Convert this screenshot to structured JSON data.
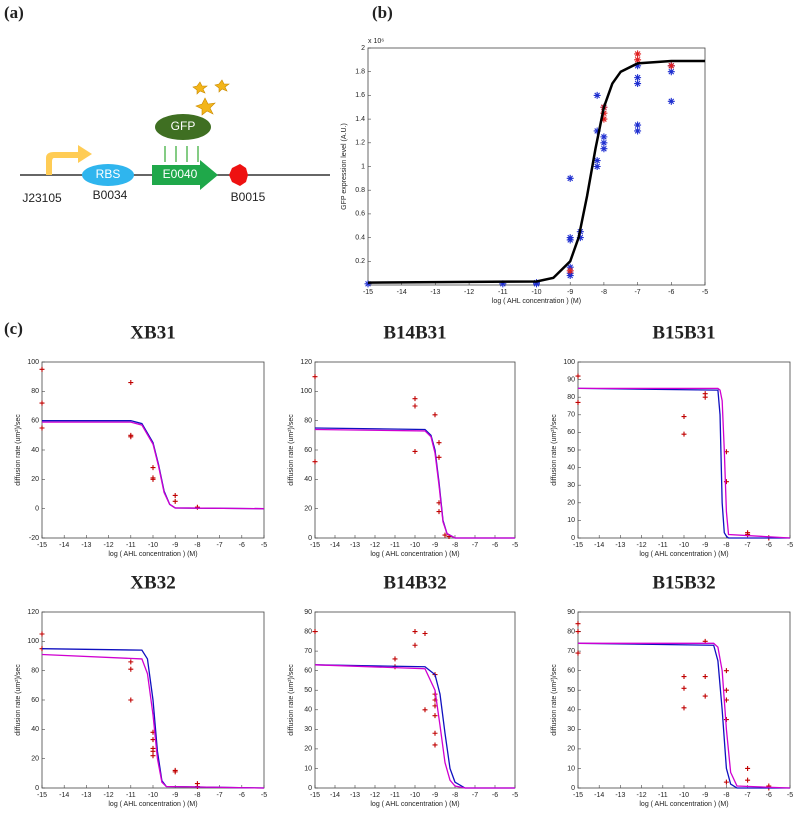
{
  "panel_labels": [
    "(a)",
    "(b)",
    "(c)"
  ],
  "diagram": {
    "promoter": "J23105",
    "rbs": "RBS",
    "rbs_part": "B0034",
    "protein": "GFP",
    "gene": "E0040",
    "terminator": "B0015"
  },
  "chart_data": [
    {
      "type": "scatter",
      "xlabel": "log ( AHL concentration ) (M)",
      "ylabel": "GFP expression level (A.U.)",
      "y_multiplier": "x 10⁶",
      "xlim": [
        -15,
        -5
      ],
      "xticks": [
        -15,
        -14,
        -13,
        -12,
        -11,
        -10,
        -9,
        -8,
        -7,
        -6,
        -5
      ],
      "ylim": [
        0,
        2
      ],
      "yticks": [
        0.2,
        0.4,
        0.6,
        0.8,
        1,
        1.2,
        1.4,
        1.6,
        1.8,
        2
      ],
      "series": [
        {
          "style": "markers",
          "marker": "*",
          "color": "#1f2fd0",
          "x": [
            -15,
            -11,
            -10,
            -10,
            -9,
            -9,
            -9,
            -9,
            -9,
            -9,
            -8.7,
            -8.7,
            -8.2,
            -8.2,
            -8.2,
            -8.2,
            -8,
            -8,
            -8,
            -8,
            -7,
            -7,
            -7,
            -7,
            -7,
            -6,
            -6,
            -6
          ],
          "values": [
            0.01,
            0.01,
            0.01,
            0.02,
            0.9,
            0.4,
            0.38,
            0.15,
            0.1,
            0.08,
            0.45,
            0.4,
            1.0,
            1.05,
            1.3,
            1.6,
            1.25,
            1.2,
            1.15,
            1.5,
            1.35,
            1.3,
            1.75,
            1.7,
            1.85,
            1.55,
            1.8,
            1.85
          ]
        },
        {
          "style": "markers",
          "marker": "*",
          "color": "#e02020",
          "x": [
            -9,
            -8,
            -8,
            -8,
            -7,
            -7,
            -6
          ],
          "values": [
            0.12,
            1.45,
            1.5,
            1.4,
            1.95,
            1.9,
            1.85
          ]
        },
        {
          "style": "line",
          "color": "#000000",
          "x": [
            -15,
            -10,
            -9.5,
            -9,
            -8.75,
            -8.5,
            -8.25,
            -8,
            -7.75,
            -7.5,
            -7,
            -6,
            -5
          ],
          "values": [
            0.02,
            0.03,
            0.06,
            0.2,
            0.4,
            0.75,
            1.15,
            1.5,
            1.7,
            1.8,
            1.87,
            1.89,
            1.89
          ]
        }
      ]
    },
    {
      "type": "scatter",
      "title": "XB31",
      "xlabel": "log ( AHL concentration ) (M)",
      "ylabel": "diffusion rate (um²)/sec",
      "xlim": [
        -15,
        -5
      ],
      "xticks": [
        -15,
        -14,
        -13,
        -12,
        -11,
        -10,
        -9,
        -8,
        -7,
        -6,
        -5
      ],
      "ylim": [
        -20,
        100
      ],
      "yticks": [
        -20,
        0,
        20,
        40,
        60,
        80,
        100
      ],
      "series": [
        {
          "style": "markers",
          "marker": "+",
          "color": "#c00000",
          "x": [
            -15,
            -15,
            -15,
            -11,
            -11,
            -11,
            -10,
            -10,
            -10,
            -9,
            -9,
            -8
          ],
          "values": [
            95,
            72,
            55,
            86,
            50,
            49,
            28,
            21,
            20,
            9,
            5,
            1
          ]
        },
        {
          "style": "line",
          "color": "#1010c0",
          "x": [
            -15,
            -11,
            -10.5,
            -10,
            -9.75,
            -9.5,
            -9.25,
            -9,
            -5
          ],
          "values": [
            60,
            60,
            58,
            45,
            30,
            12,
            3,
            0.5,
            0
          ]
        },
        {
          "style": "line",
          "color": "#d000d0",
          "x": [
            -15,
            -11,
            -10.5,
            -10,
            -9.75,
            -9.5,
            -9.25,
            -9,
            -5
          ],
          "values": [
            59,
            59,
            57,
            44,
            29,
            11,
            3,
            0.5,
            0
          ]
        }
      ]
    },
    {
      "type": "scatter",
      "title": "B14B31",
      "xlabel": "log ( AHL concentration ) (M)",
      "ylabel": "diffusion rate (um²)/sec",
      "xlim": [
        -15,
        -5
      ],
      "xticks": [
        -15,
        -14,
        -13,
        -12,
        -11,
        -10,
        -9,
        -8,
        -7,
        -6,
        -5
      ],
      "ylim": [
        0,
        120
      ],
      "yticks": [
        0,
        20,
        40,
        60,
        80,
        100,
        120
      ],
      "series": [
        {
          "style": "markers",
          "marker": "+",
          "color": "#c00000",
          "x": [
            -15,
            -15,
            -10,
            -10,
            -10,
            -9,
            -8.8,
            -8.8,
            -8.8,
            -8.8,
            -8.5,
            -8.3
          ],
          "values": [
            110,
            52,
            95,
            90,
            59,
            84,
            65,
            55,
            24,
            18,
            2,
            1
          ]
        },
        {
          "style": "line",
          "color": "#1010c0",
          "x": [
            -15,
            -9.5,
            -9.2,
            -9,
            -8.8,
            -8.6,
            -8.4,
            -8,
            -5
          ],
          "values": [
            75,
            74,
            70,
            60,
            38,
            12,
            3,
            0,
            0
          ]
        },
        {
          "style": "line",
          "color": "#d000d0",
          "x": [
            -15,
            -9.5,
            -9.2,
            -9,
            -8.8,
            -8.6,
            -8.4,
            -8,
            -5
          ],
          "values": [
            74,
            73,
            69,
            58,
            36,
            11,
            3,
            0,
            0
          ]
        }
      ]
    },
    {
      "type": "scatter",
      "title": "B15B31",
      "xlabel": "log ( AHL concentration ) (M)",
      "ylabel": "diffusion rate (um²)/sec",
      "xlim": [
        -15,
        -5
      ],
      "xticks": [
        -15,
        -14,
        -13,
        -12,
        -11,
        -10,
        -9,
        -8,
        -7,
        -6,
        -5
      ],
      "ylim": [
        0,
        100
      ],
      "yticks": [
        0,
        10,
        20,
        30,
        40,
        50,
        60,
        70,
        80,
        90,
        100
      ],
      "series": [
        {
          "style": "markers",
          "marker": "+",
          "color": "#c00000",
          "x": [
            -15,
            -15,
            -10,
            -10,
            -9,
            -9,
            -8,
            -8,
            -7,
            -7,
            -6
          ],
          "values": [
            92,
            77,
            69,
            59,
            82,
            80,
            49,
            32,
            3,
            2,
            0
          ]
        },
        {
          "style": "line",
          "color": "#1010c0",
          "x": [
            -15,
            -8.4,
            -8.3,
            -8.2,
            -8.1,
            -8,
            -7.9,
            -5
          ],
          "values": [
            85,
            84,
            70,
            20,
            3,
            1,
            0,
            0
          ]
        },
        {
          "style": "line",
          "color": "#d000d0",
          "x": [
            -15,
            -8.4,
            -8.3,
            -8.2,
            -8.1,
            -8,
            -7.9,
            -5
          ],
          "values": [
            85,
            85,
            84,
            78,
            50,
            15,
            2,
            0
          ]
        }
      ]
    },
    {
      "type": "scatter",
      "title": "XB32",
      "xlabel": "log ( AHL concentration ) (M)",
      "ylabel": "diffusion rate (um²)/sec",
      "xlim": [
        -15,
        -5
      ],
      "xticks": [
        -15,
        -14,
        -13,
        -12,
        -11,
        -10,
        -9,
        -8,
        -7,
        -6,
        -5
      ],
      "ylim": [
        0,
        120
      ],
      "yticks": [
        0,
        20,
        40,
        60,
        80,
        100,
        120
      ],
      "series": [
        {
          "style": "markers",
          "marker": "+",
          "color": "#c00000",
          "x": [
            -15,
            -15,
            -11,
            -11,
            -11,
            -10,
            -10,
            -10,
            -10,
            -10,
            -9,
            -9,
            -8,
            -8
          ],
          "values": [
            105,
            95,
            86,
            81,
            60,
            38,
            33,
            27,
            22,
            25,
            12,
            11,
            3,
            1
          ]
        },
        {
          "style": "line",
          "color": "#1010c0",
          "x": [
            -15,
            -10.5,
            -10.25,
            -10,
            -9.8,
            -9.6,
            -9.4,
            -5
          ],
          "values": [
            95,
            94,
            88,
            60,
            25,
            5,
            1,
            0
          ]
        },
        {
          "style": "line",
          "color": "#d000d0",
          "x": [
            -15,
            -10.5,
            -10.25,
            -10,
            -9.8,
            -9.6,
            -9.4,
            -5
          ],
          "values": [
            91,
            88,
            78,
            50,
            20,
            4,
            1,
            0
          ]
        }
      ]
    },
    {
      "type": "scatter",
      "title": "B14B32",
      "xlabel": "log ( AHL concentration ) (M)",
      "ylabel": "diffusion rate (um²)/sec",
      "xlim": [
        -15,
        -5
      ],
      "xticks": [
        -15,
        -14,
        -13,
        -12,
        -11,
        -10,
        -9,
        -8,
        -7,
        -6,
        -5
      ],
      "ylim": [
        0,
        90
      ],
      "yticks": [
        0,
        10,
        20,
        30,
        40,
        50,
        60,
        70,
        80,
        90
      ],
      "series": [
        {
          "style": "markers",
          "marker": "+",
          "color": "#c00000",
          "x": [
            -15,
            -11,
            -11,
            -10,
            -10,
            -9.5,
            -9.5,
            -9,
            -9,
            -9,
            -9,
            -9,
            -9,
            -9
          ],
          "values": [
            80,
            66,
            62,
            80,
            73,
            79,
            40,
            58,
            48,
            45,
            42,
            37,
            28,
            22
          ]
        },
        {
          "style": "line",
          "color": "#1010c0",
          "x": [
            -15,
            -9.5,
            -9,
            -8.75,
            -8.5,
            -8.25,
            -8,
            -7.5,
            -5
          ],
          "values": [
            63,
            62,
            58,
            48,
            28,
            10,
            3,
            0,
            0
          ]
        },
        {
          "style": "line",
          "color": "#d000d0",
          "x": [
            -15,
            -9.5,
            -9,
            -8.75,
            -8.5,
            -8.25,
            -8,
            -7.5,
            -5
          ],
          "values": [
            63,
            61,
            50,
            32,
            13,
            4,
            1,
            0,
            0
          ]
        }
      ]
    },
    {
      "type": "scatter",
      "title": "B15B32",
      "xlabel": "log ( AHL concentration ) (M)",
      "ylabel": "diffusion rate (um²)/sec",
      "xlim": [
        -15,
        -5
      ],
      "xticks": [
        -15,
        -14,
        -13,
        -12,
        -11,
        -10,
        -9,
        -8,
        -7,
        -6,
        -5
      ],
      "ylim": [
        0,
        90
      ],
      "yticks": [
        0,
        10,
        20,
        30,
        40,
        50,
        60,
        70,
        80,
        90
      ],
      "series": [
        {
          "style": "markers",
          "marker": "+",
          "color": "#c00000",
          "x": [
            -15,
            -15,
            -15,
            -10,
            -10,
            -10,
            -9,
            -9,
            -9,
            -8,
            -8,
            -8,
            -8,
            -8,
            -7,
            -7,
            -6,
            -6
          ],
          "values": [
            84,
            80,
            69,
            57,
            51,
            41,
            75,
            57,
            47,
            60,
            50,
            45,
            35,
            3,
            10,
            4,
            1,
            0
          ]
        },
        {
          "style": "line",
          "color": "#1010c0",
          "x": [
            -15,
            -8.6,
            -8.4,
            -8.2,
            -8,
            -7.8,
            -7.5,
            -5
          ],
          "values": [
            74,
            73,
            65,
            40,
            10,
            2,
            0,
            0
          ]
        },
        {
          "style": "line",
          "color": "#d000d0",
          "x": [
            -15,
            -8.6,
            -8.4,
            -8.2,
            -8,
            -7.8,
            -7.5,
            -5
          ],
          "values": [
            74,
            74,
            72,
            60,
            30,
            8,
            1,
            0
          ]
        }
      ]
    }
  ]
}
